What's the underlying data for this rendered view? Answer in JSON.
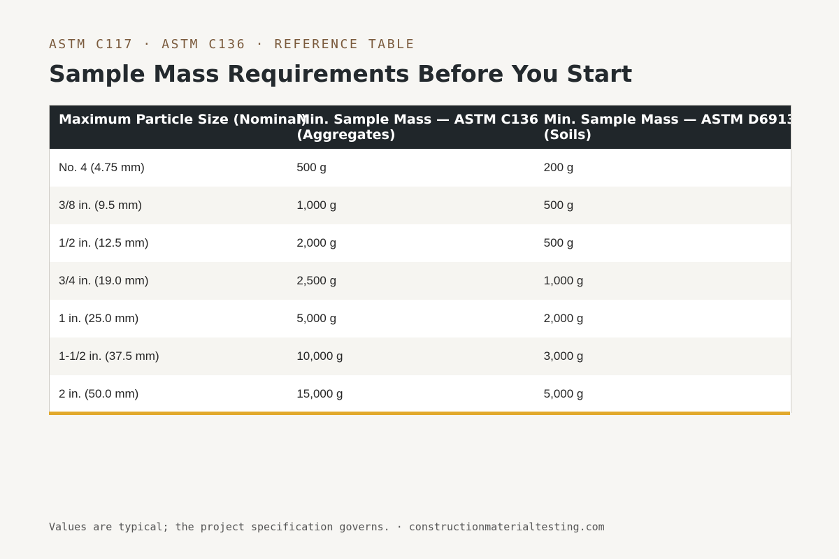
{
  "header": {
    "eyebrow": "ASTM C117 · ASTM C136 · REFERENCE TABLE",
    "title": "Sample Mass Requirements Before You Start"
  },
  "table": {
    "columns": [
      {
        "line1": "Maximum Particle Size (Nominal)",
        "line2": ""
      },
      {
        "line1": "Min. Sample Mass — ASTM C136",
        "line2": "(Aggregates)"
      },
      {
        "line1": "Min. Sample Mass — ASTM D6913",
        "line2": "(Soils)"
      }
    ],
    "rows": [
      [
        "No. 4 (4.75 mm)",
        "500 g",
        "200 g"
      ],
      [
        "3/8 in. (9.5 mm)",
        "1,000 g",
        "500 g"
      ],
      [
        "1/2 in. (12.5 mm)",
        "2,000 g",
        "500 g"
      ],
      [
        "3/4 in. (19.0 mm)",
        "2,500 g",
        "1,000 g"
      ],
      [
        "1 in. (25.0 mm)",
        "5,000 g",
        "2,000 g"
      ],
      [
        "1-1/2 in. (37.5 mm)",
        "10,000 g",
        "3,000 g"
      ],
      [
        "2 in. (50.0 mm)",
        "15,000 g",
        "5,000 g"
      ]
    ]
  },
  "footer": {
    "note": "Values are typical; the project specification governs. · constructionmaterialtesting.com"
  },
  "colors": {
    "background": "#f7f6f3",
    "header_row": "#20262a",
    "accent": "#e2a92c",
    "eyebrow": "#7a5a3c"
  }
}
